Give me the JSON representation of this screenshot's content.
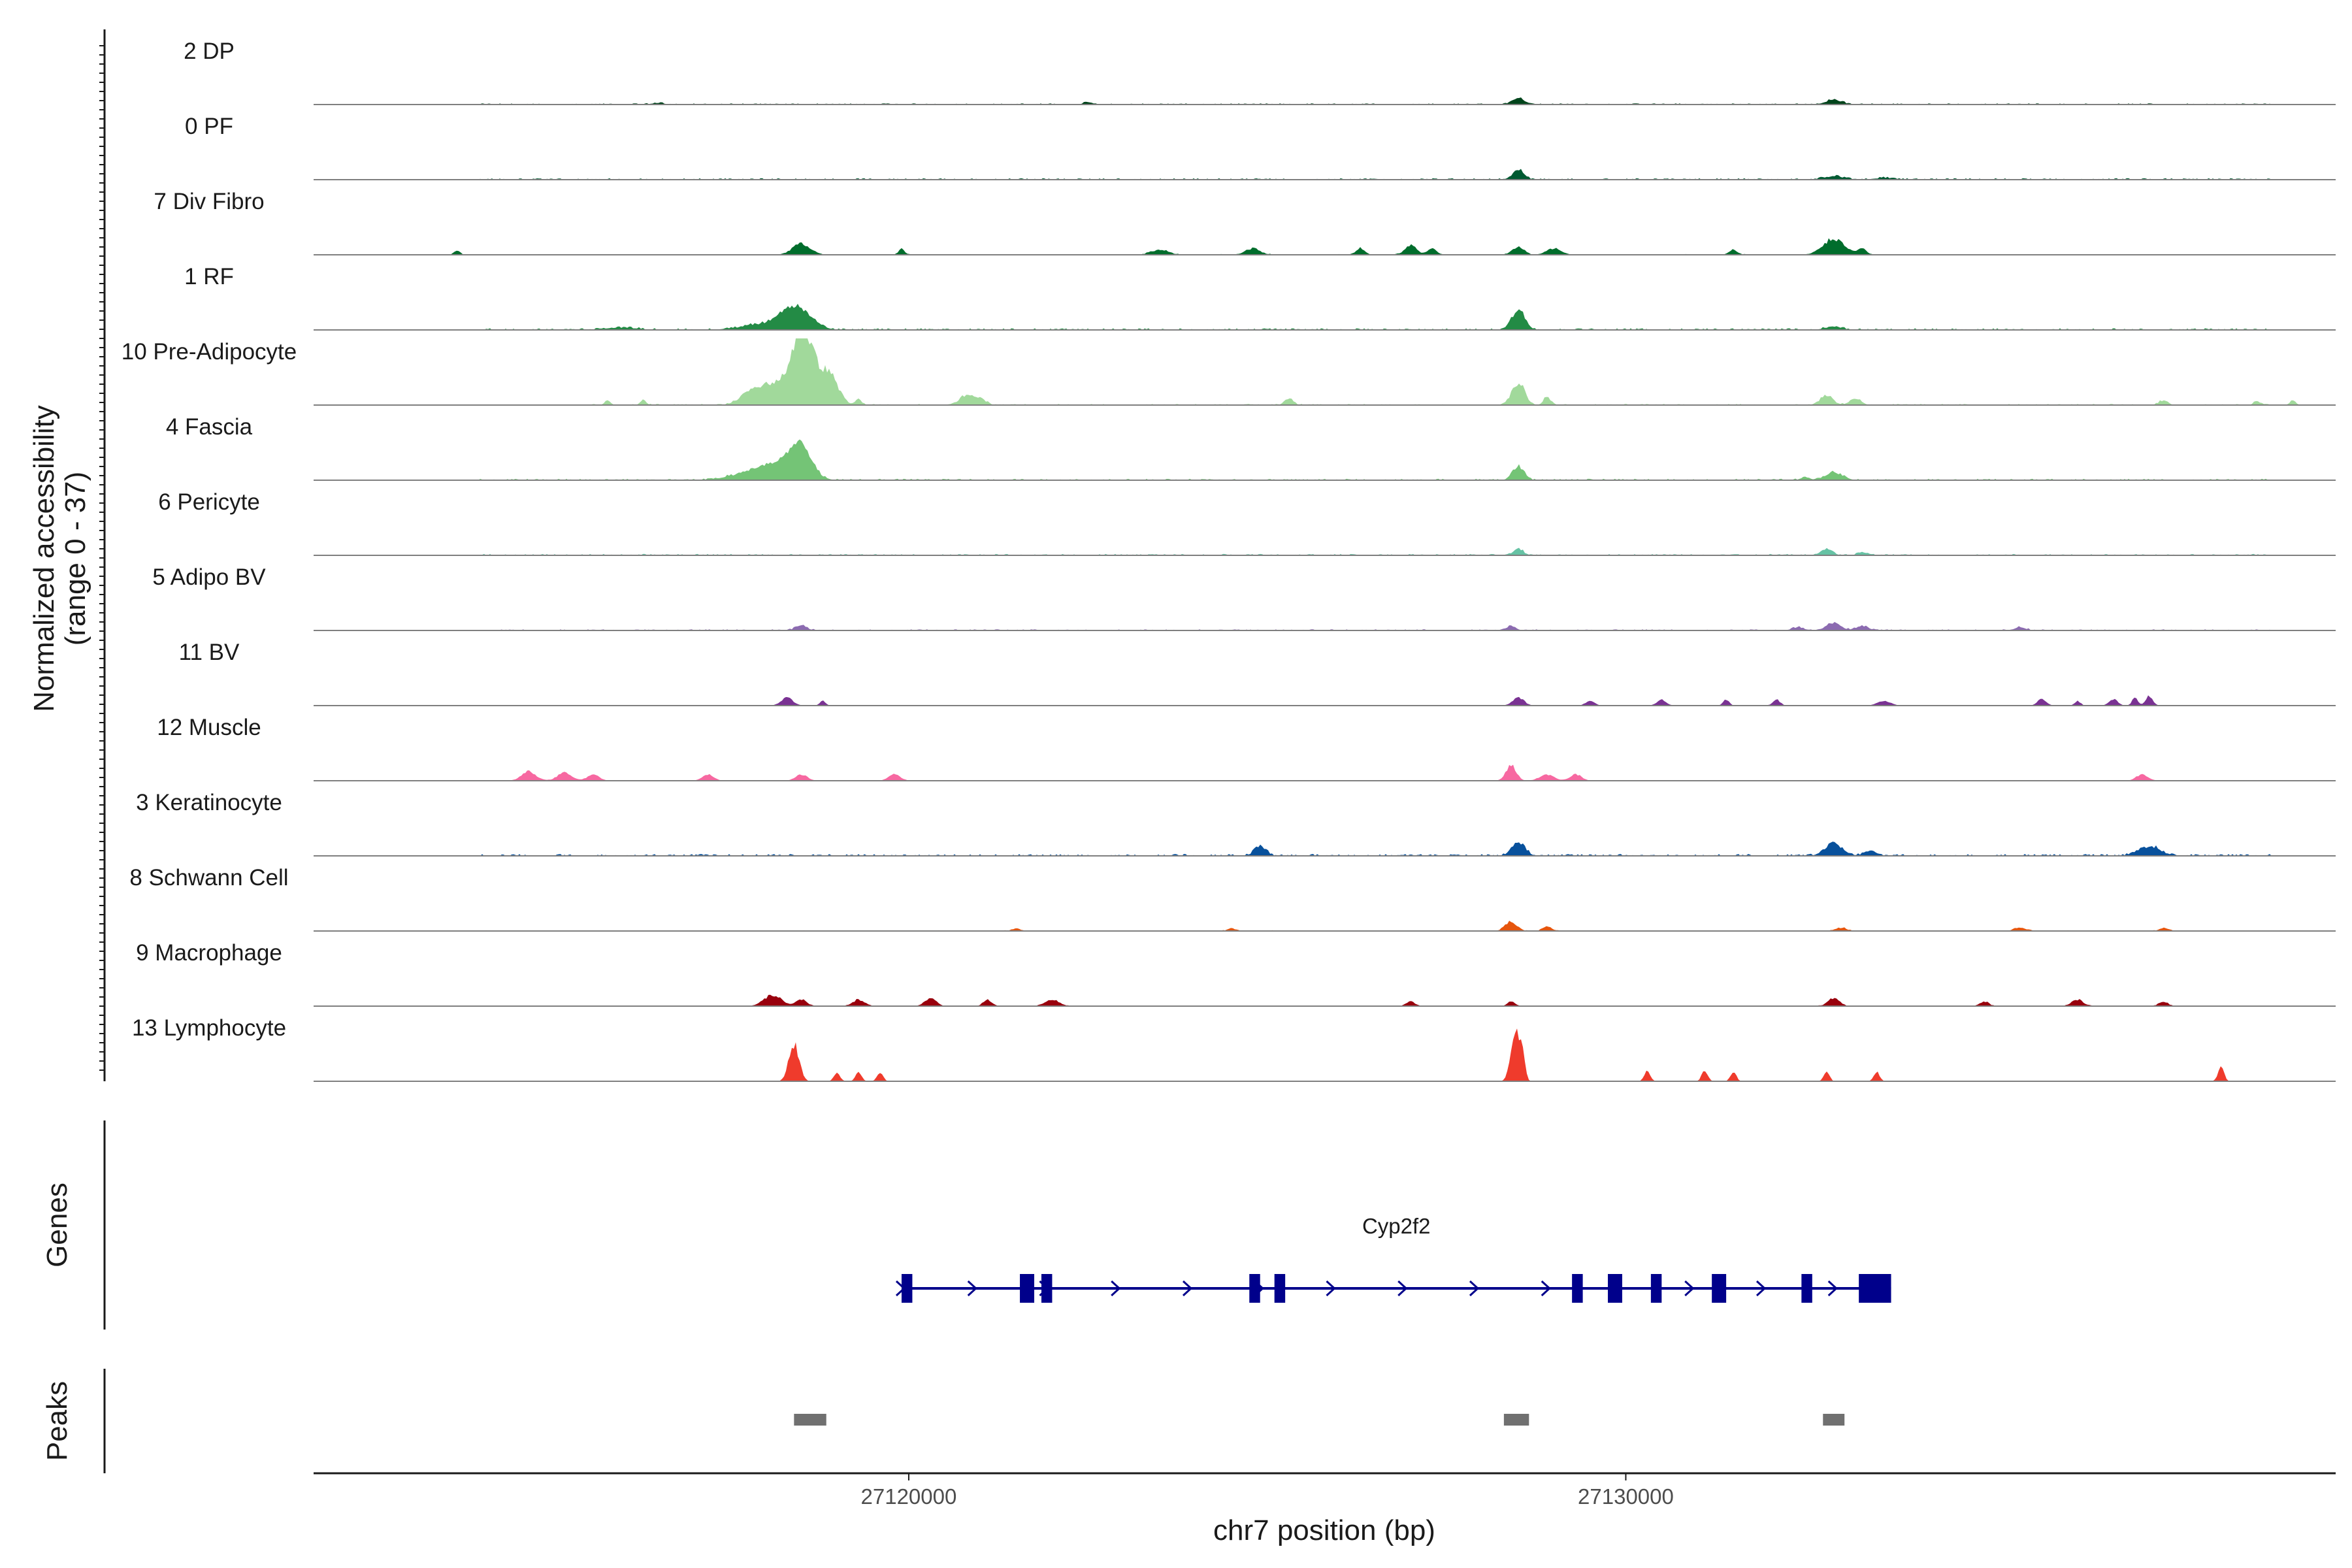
{
  "chart_data": {
    "type": "area",
    "kind": "genome-browser coverage tracks",
    "chromosome": "chr7",
    "x_range": [
      27111700,
      27139900
    ],
    "ylabel_line1": "Normalized accessibility",
    "ylabel_line2": "(range 0 - 37)",
    "y_range": [
      0,
      37
    ],
    "xlabel": "chr7 position (bp)",
    "x_ticks": [
      {
        "value": 27120000,
        "label": "27120000"
      },
      {
        "value": 27130000,
        "label": "27130000"
      }
    ],
    "genes_label": "Genes",
    "peaks_label": "Peaks",
    "baseline_color": "#7f7f7f",
    "tracks": [
      {
        "name": "2 DP",
        "color": "#00441b",
        "noise": [
          27114000,
          27139000,
          0.5
        ],
        "peaks": [
          [
            27128500,
            90,
            4
          ],
          [
            27132900,
            110,
            3
          ],
          [
            27122500,
            60,
            1.5
          ],
          [
            27116500,
            80,
            1
          ]
        ]
      },
      {
        "name": "0 PF",
        "color": "#005a32",
        "noise": [
          27114000,
          27139000,
          0.6
        ],
        "peaks": [
          [
            27128500,
            80,
            6
          ],
          [
            27132900,
            140,
            2
          ],
          [
            27133600,
            150,
            1
          ]
        ]
      },
      {
        "name": "7 Div Fibro",
        "color": "#006d2c",
        "noise": [
          27113600,
          27133500,
          0.3
        ],
        "peaks": [
          [
            27113700,
            40,
            3
          ],
          [
            27118500,
            120,
            7
          ],
          [
            27119900,
            40,
            4
          ],
          [
            27123500,
            120,
            3
          ],
          [
            27124800,
            100,
            4
          ],
          [
            27126300,
            60,
            4
          ],
          [
            27127000,
            80,
            6
          ],
          [
            27127300,
            60,
            4
          ],
          [
            27128500,
            80,
            5
          ],
          [
            27129000,
            100,
            4
          ],
          [
            27131500,
            60,
            3
          ],
          [
            27132900,
            150,
            10
          ],
          [
            27133300,
            60,
            4
          ]
        ]
      },
      {
        "name": "1 RF",
        "color": "#238b45",
        "noise": [
          27114000,
          27139000,
          0.7
        ],
        "peaks": [
          [
            27118000,
            300,
            4
          ],
          [
            27118500,
            180,
            10
          ],
          [
            27118300,
            150,
            6
          ],
          [
            27128500,
            90,
            13
          ],
          [
            27132900,
            120,
            2
          ],
          [
            27116000,
            200,
            1.5
          ]
        ]
      },
      {
        "name": "10 Pre-Adipocyte",
        "color": "#a1d99b",
        "noise": [
          27115500,
          27139000,
          0.5
        ],
        "peaks": [
          [
            27118500,
            120,
            37
          ],
          [
            27118200,
            200,
            15
          ],
          [
            27118700,
            150,
            20
          ],
          [
            27117800,
            150,
            8
          ],
          [
            27118900,
            80,
            10
          ],
          [
            27119000,
            100,
            6
          ],
          [
            27119300,
            40,
            4
          ],
          [
            27120800,
            90,
            6
          ],
          [
            27121000,
            80,
            4
          ],
          [
            27128500,
            90,
            14
          ],
          [
            27128900,
            50,
            5
          ],
          [
            27125300,
            60,
            4
          ],
          [
            27132800,
            90,
            6
          ],
          [
            27133200,
            80,
            4
          ],
          [
            27115800,
            40,
            3
          ],
          [
            27116300,
            40,
            3
          ],
          [
            27137500,
            60,
            3
          ],
          [
            27138800,
            40,
            3
          ],
          [
            27139300,
            40,
            3
          ]
        ]
      },
      {
        "name": "4 Fascia",
        "color": "#74c476",
        "noise": [
          27114000,
          27139000,
          0.6
        ],
        "peaks": [
          [
            27118500,
            150,
            18
          ],
          [
            27118200,
            250,
            9
          ],
          [
            27117800,
            300,
            4
          ],
          [
            27128500,
            80,
            9
          ],
          [
            27132900,
            120,
            5
          ],
          [
            27132500,
            60,
            2
          ]
        ]
      },
      {
        "name": "6 Pericyte",
        "color": "#66c2a4",
        "noise": [
          27114000,
          27139000,
          0.6
        ],
        "peaks": [
          [
            27128500,
            70,
            4
          ],
          [
            27132800,
            80,
            4
          ],
          [
            27133300,
            60,
            2
          ]
        ]
      },
      {
        "name": "5 Adipo BV",
        "color": "#8c6bb1",
        "noise": [
          27114000,
          27139000,
          0.5
        ],
        "peaks": [
          [
            27118500,
            80,
            3
          ],
          [
            27128400,
            60,
            3
          ],
          [
            27132900,
            100,
            5
          ],
          [
            27133300,
            80,
            3
          ],
          [
            27132400,
            80,
            2
          ],
          [
            27135500,
            80,
            2
          ]
        ]
      },
      {
        "name": "11 BV",
        "color": "#7a3293",
        "noise": [
          27118000,
          27138500,
          0.1
        ],
        "peaks": [
          [
            27118300,
            80,
            5
          ],
          [
            27118800,
            40,
            3
          ],
          [
            27128500,
            80,
            5
          ],
          [
            27129500,
            60,
            3
          ],
          [
            27130500,
            60,
            4
          ],
          [
            27131400,
            40,
            4
          ],
          [
            27132100,
            50,
            4
          ],
          [
            27133600,
            90,
            3
          ],
          [
            27135800,
            60,
            4
          ],
          [
            27136300,
            40,
            3
          ],
          [
            27136800,
            60,
            4
          ],
          [
            27137100,
            40,
            5
          ],
          [
            27137300,
            50,
            6
          ]
        ]
      },
      {
        "name": "12 Muscle",
        "color": "#f768a1",
        "noise": [
          27114500,
          27137500,
          0.1
        ],
        "peaks": [
          [
            27114700,
            100,
            6
          ],
          [
            27115200,
            100,
            5
          ],
          [
            27115600,
            80,
            4
          ],
          [
            27117200,
            80,
            4
          ],
          [
            27118500,
            80,
            4
          ],
          [
            27119800,
            80,
            4
          ],
          [
            27128400,
            70,
            10
          ],
          [
            27128900,
            100,
            4
          ],
          [
            27129300,
            80,
            4
          ],
          [
            27137200,
            80,
            4
          ]
        ]
      },
      {
        "name": "3 Keratinocyte",
        "color": "#08519c",
        "noise": [
          27114000,
          27139000,
          0.8
        ],
        "peaks": [
          [
            27128500,
            90,
            9
          ],
          [
            27124900,
            80,
            6
          ],
          [
            27132900,
            120,
            8
          ],
          [
            27137300,
            150,
            6
          ],
          [
            27133400,
            80,
            3
          ]
        ]
      },
      {
        "name": "8 Schwann Cell",
        "color": "#e6550d",
        "noise": [
          27113700,
          27138500,
          0.3
        ],
        "peaks": [
          [
            27128400,
            80,
            6
          ],
          [
            27128900,
            60,
            3
          ],
          [
            27121500,
            60,
            1.5
          ],
          [
            27124500,
            60,
            1.5
          ],
          [
            27133000,
            80,
            2
          ],
          [
            27135500,
            80,
            2
          ],
          [
            27137500,
            60,
            2
          ]
        ]
      },
      {
        "name": "9 Macrophage",
        "color": "#99000d",
        "noise": [
          27117800,
          27138000,
          0.2
        ],
        "peaks": [
          [
            27118100,
            120,
            7
          ],
          [
            27118500,
            80,
            4
          ],
          [
            27119300,
            80,
            4
          ],
          [
            27120300,
            80,
            5
          ],
          [
            27121100,
            60,
            4
          ],
          [
            27122000,
            100,
            4
          ],
          [
            27127000,
            60,
            3
          ],
          [
            27128400,
            50,
            3
          ],
          [
            27132900,
            80,
            5
          ],
          [
            27136300,
            80,
            4
          ],
          [
            27137500,
            60,
            3
          ],
          [
            27135000,
            60,
            3
          ]
        ]
      },
      {
        "name": "13 Lymphocyte",
        "color": "#ef3b2c",
        "noise": [
          27118000,
          27138500,
          0.05
        ],
        "peaks": [
          [
            27118400,
            70,
            24
          ],
          [
            27119000,
            40,
            6
          ],
          [
            27119300,
            40,
            6
          ],
          [
            27119600,
            40,
            6
          ],
          [
            27128450,
            60,
            30
          ],
          [
            27128550,
            40,
            18
          ],
          [
            27130300,
            40,
            7
          ],
          [
            27131100,
            40,
            7
          ],
          [
            27131500,
            40,
            6
          ],
          [
            27132800,
            40,
            6
          ],
          [
            27133500,
            40,
            6
          ],
          [
            27138300,
            40,
            10
          ]
        ]
      }
    ],
    "gene": {
      "name": "Cyp2f2",
      "strand": "+",
      "color": "#00008b",
      "start": 27119900,
      "end": 27133700,
      "exons": [
        [
          27119900,
          27120050
        ],
        [
          27121550,
          27121750
        ],
        [
          27121850,
          27122000
        ],
        [
          27124750,
          27124900
        ],
        [
          27125100,
          27125250
        ],
        [
          27129250,
          27129400
        ],
        [
          27129750,
          27129950
        ],
        [
          27130350,
          27130500
        ],
        [
          27131200,
          27131400
        ],
        [
          27132450,
          27132600
        ],
        [
          27133250,
          27133700
        ]
      ]
    },
    "peaks_regions": [
      [
        27118400,
        27118850
      ],
      [
        27128300,
        27128650
      ],
      [
        27132750,
        27133050
      ]
    ],
    "peaks_color": "#707070"
  }
}
